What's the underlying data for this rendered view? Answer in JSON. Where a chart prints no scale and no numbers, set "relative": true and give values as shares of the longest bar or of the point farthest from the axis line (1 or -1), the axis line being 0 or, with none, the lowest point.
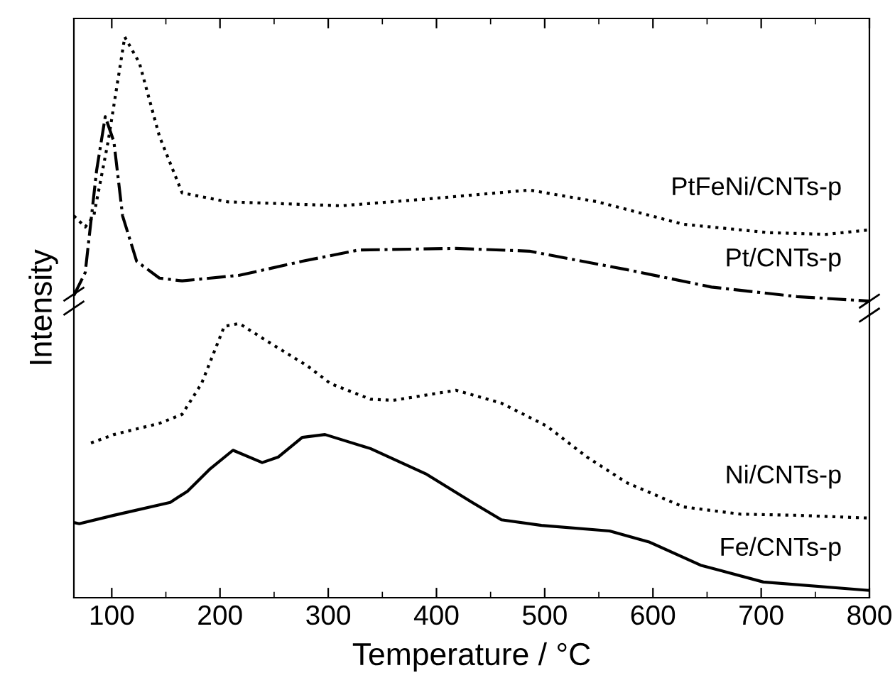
{
  "chart_data": {
    "type": "line",
    "relative": true,
    "xlabel": "Temperature / °C",
    "ylabel": "Intensity",
    "xlim": [
      65,
      800
    ],
    "xticks": [
      100,
      200,
      300,
      400,
      500,
      600,
      700,
      800
    ],
    "grid": false,
    "legend": false,
    "marker": "none",
    "tick_labels": "x",
    "series": [
      {
        "name": "PtFeNi/CNTs-p",
        "color": "#000000",
        "line_style": "dotted",
        "x": [
          65,
          75.5,
          83.4,
          96.6,
          112,
          125.5,
          144,
          165,
          207,
          312,
          391,
          486,
          549,
          628,
          707,
          760,
          800
        ],
        "values": [
          0.681,
          0.661,
          0.681,
          0.813,
          1.0,
          0.954,
          0.823,
          0.722,
          0.706,
          0.699,
          0.711,
          0.727,
          0.706,
          0.666,
          0.651,
          0.648,
          0.656
        ]
      },
      {
        "name": "Pt/CNTs-p",
        "color": "#000000",
        "line_style": "dashdot",
        "x": [
          65,
          75.5,
          86,
          94,
          102,
          110,
          123,
          144,
          165,
          218,
          276,
          328,
          418,
          486,
          576,
          654,
          733,
          800
        ],
        "values": [
          0.539,
          0.58,
          0.762,
          0.858,
          0.813,
          0.681,
          0.6,
          0.57,
          0.565,
          0.575,
          0.6,
          0.62,
          0.623,
          0.618,
          0.585,
          0.554,
          0.537,
          0.529
        ]
      },
      {
        "name": "Ni/CNTs-p",
        "color": "#000000",
        "line_style": "dotted",
        "x": [
          80.8,
          102,
          144,
          165,
          183,
          204,
          218,
          239,
          281,
          302,
          339,
          360,
          418,
          460,
          502,
          539,
          576,
          628,
          681,
          733,
          800
        ],
        "values": [
          0.276,
          0.291,
          0.311,
          0.327,
          0.382,
          0.484,
          0.489,
          0.463,
          0.413,
          0.382,
          0.354,
          0.352,
          0.37,
          0.347,
          0.306,
          0.251,
          0.205,
          0.162,
          0.149,
          0.147,
          0.142
        ]
      },
      {
        "name": "Fe/CNTs-p",
        "color": "#000000",
        "line_style": "solid",
        "x": [
          65,
          70,
          102,
          154,
          170,
          191,
          212,
          239,
          254,
          276,
          297,
          339,
          391,
          433,
          460,
          497,
          560,
          597,
          644,
          702,
          800
        ],
        "values": [
          0.134,
          0.132,
          0.147,
          0.17,
          0.19,
          0.23,
          0.263,
          0.241,
          0.251,
          0.286,
          0.291,
          0.266,
          0.22,
          0.17,
          0.139,
          0.129,
          0.119,
          0.099,
          0.058,
          0.028,
          0.013
        ]
      }
    ]
  }
}
